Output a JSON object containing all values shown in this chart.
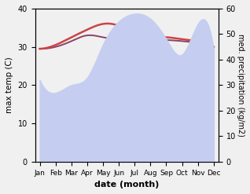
{
  "months": [
    "Jan",
    "Feb",
    "Mar",
    "Apr",
    "May",
    "Jun",
    "Jul",
    "Aug",
    "Sep",
    "Oct",
    "Nov",
    "Dec"
  ],
  "max_temp": [
    29.5,
    30.5,
    32.5,
    34.5,
    36.0,
    35.5,
    33.5,
    32.5,
    32.5,
    32.0,
    31.5,
    30.0
  ],
  "med_temp": [
    29.5,
    30.0,
    31.5,
    33.0,
    32.5,
    32.0,
    32.0,
    32.0,
    31.8,
    31.5,
    31.0,
    30.0
  ],
  "precipitation": [
    32.0,
    27.0,
    30.0,
    33.0,
    46.0,
    55.0,
    58.0,
    56.0,
    48.0,
    42.0,
    54.0,
    44.0
  ],
  "temp_ylim": [
    0,
    40
  ],
  "precip_ylim": [
    0,
    60
  ],
  "temp_color": "#cc4444",
  "precip_fill_color": "#c5cef0",
  "line2_color": "#884466",
  "xlabel": "date (month)",
  "ylabel_left": "max temp (C)",
  "ylabel_right": "med. precipitation (kg/m2)",
  "bg_color": "#f0f0f0"
}
